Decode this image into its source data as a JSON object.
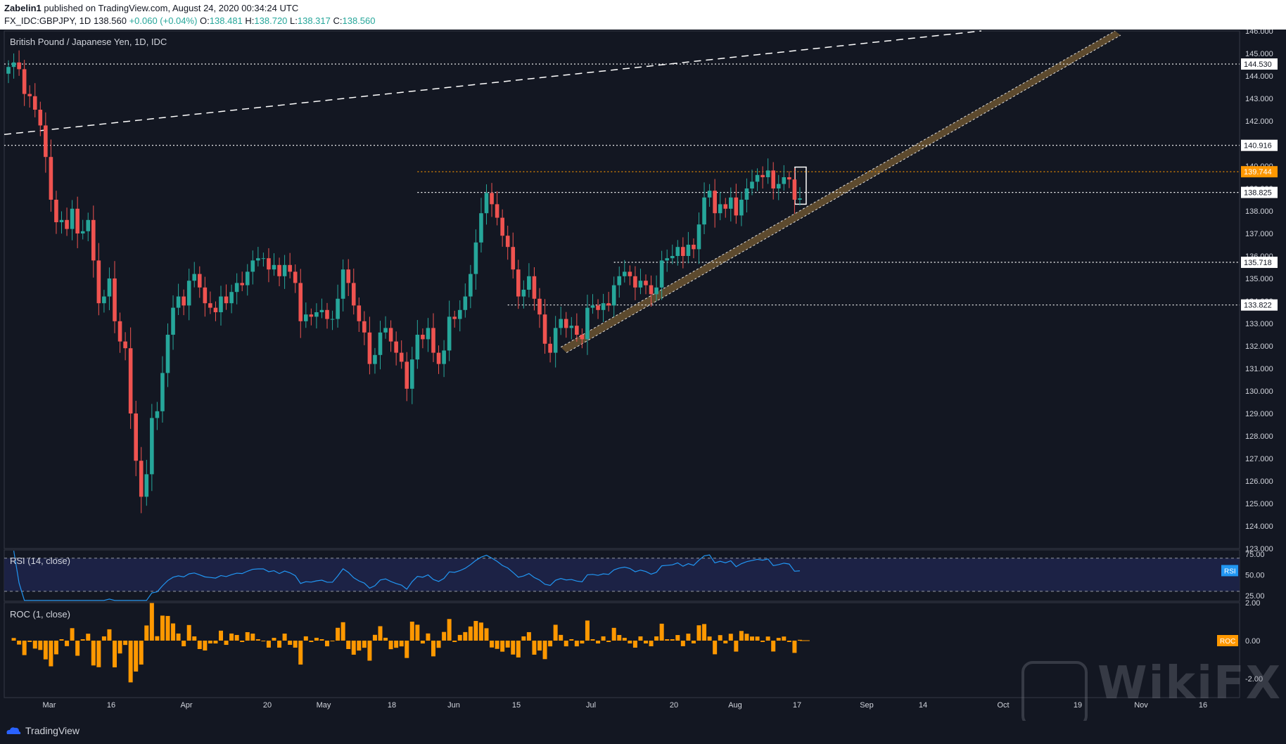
{
  "header": {
    "publisher": "Zabelin1",
    "published_text": "published on TradingView.com, August 24, 2020 00:34:24 UTC",
    "symbol": "FX_IDC:GBPJPY, 1D",
    "last": "138.560",
    "change": "+0.060 (+0.04%)",
    "o_label": "O:",
    "o": "138.481",
    "h_label": "H:",
    "h": "138.720",
    "l_label": "L:",
    "l": "138.317",
    "c_label": "C:",
    "c": "138.560"
  },
  "colors": {
    "background": "#131722",
    "up": "#26a69a",
    "down": "#ef5350",
    "rsi_line": "#2196f3",
    "roc": "#ff9800",
    "channel": "#6b5330"
  },
  "chart_data": [
    {
      "type": "candlestick",
      "title": "British Pound / Japanese Yen, 1D, IDC",
      "ylim": [
        123.0,
        146.0
      ],
      "y_ticks": [
        "146.000",
        "145.000",
        "144.000",
        "143.000",
        "142.000",
        "141.000",
        "140.000",
        "139.000",
        "138.000",
        "137.000",
        "136.000",
        "135.000",
        "134.000",
        "133.000",
        "132.000",
        "131.000",
        "130.000",
        "129.000",
        "128.000",
        "127.000",
        "126.000",
        "125.000",
        "124.000",
        "123.000"
      ],
      "x_ticks": [
        "Mar",
        "16",
        "Apr",
        "20",
        "May",
        "18",
        "Jun",
        "15",
        "Jul",
        "20",
        "Aug",
        "17",
        "Sep",
        "14",
        "Oct",
        "19",
        "Nov",
        "16"
      ],
      "price_labels": [
        {
          "value": 144.53,
          "text": "144.530"
        },
        {
          "value": 140.916,
          "text": "140.916"
        },
        {
          "value": 139.744,
          "text": "139.744",
          "highlight": true
        },
        {
          "value": 138.825,
          "text": "138.825"
        },
        {
          "value": 135.718,
          "text": "135.718"
        },
        {
          "value": 133.822,
          "text": "133.822"
        }
      ],
      "series": [
        {
          "name": "GBPJPY",
          "ohlc_close": [
            144.4,
            144.6,
            144.3,
            143.2,
            143.1,
            142.5,
            141.8,
            140.4,
            138.5,
            137.5,
            137.6,
            137.2,
            138.1,
            137.0,
            137.1,
            137.6,
            135.8,
            133.9,
            134.2,
            135.0,
            133.1,
            132.2,
            131.9,
            129.0,
            126.9,
            125.3,
            126.3,
            128.8,
            129.1,
            130.8,
            132.5,
            133.7,
            134.2,
            133.8,
            134.9,
            135.2,
            134.6,
            133.9,
            133.7,
            133.5,
            134.2,
            133.9,
            134.4,
            134.8,
            134.7,
            135.3,
            135.8,
            135.9,
            135.9,
            135.4,
            135.6,
            135.1,
            135.6,
            135.3,
            134.8,
            133.1,
            133.4,
            133.3,
            133.5,
            133.6,
            133.2,
            133.2,
            134.1,
            135.4,
            134.8,
            133.8,
            133.1,
            132.6,
            131.2,
            131.6,
            132.6,
            132.8,
            132.2,
            131.7,
            131.3,
            130.1,
            131.4,
            132.5,
            132.3,
            132.8,
            131.7,
            131.2,
            131.8,
            133.3,
            133.2,
            133.6,
            134.2,
            135.2,
            136.6,
            137.9,
            138.8,
            138.3,
            137.7,
            136.9,
            136.4,
            135.4,
            134.2,
            134.5,
            135.1,
            134.1,
            133.4,
            132.1,
            131.7,
            132.8,
            133.2,
            132.8,
            132.9,
            132.5,
            132.3,
            133.7,
            133.8,
            133.6,
            133.9,
            133.8,
            134.7,
            135.1,
            135.3,
            135.1,
            134.6,
            134.9,
            134.7,
            134.3,
            134.6,
            135.8,
            135.9,
            136.0,
            136.4,
            136.0,
            136.5,
            136.3,
            137.4,
            138.6,
            138.9,
            137.9,
            138.3,
            138.1,
            138.6,
            137.8,
            138.5,
            139.0,
            139.3,
            139.6,
            139.5,
            139.8,
            139.0,
            139.2,
            139.5,
            139.4,
            138.5,
            138.56
          ],
          "note": "approx daily closes read from the chart"
        }
      ]
    },
    {
      "type": "line",
      "title": "RSI (14, close)",
      "ylim": [
        18,
        80
      ],
      "levels": [
        70,
        30
      ],
      "y_ticks": [
        "75.00",
        "50.00",
        "25.00"
      ],
      "badge": "RSI"
    },
    {
      "type": "bar",
      "title": "ROC (1, close)",
      "ylim": [
        -3.0,
        2.0
      ],
      "y_ticks": [
        "2.00",
        "0.00",
        "-2.00"
      ],
      "badge": "ROC"
    }
  ],
  "footer": {
    "brand": "TradingView"
  },
  "watermark": {
    "text": "WikiFX"
  }
}
